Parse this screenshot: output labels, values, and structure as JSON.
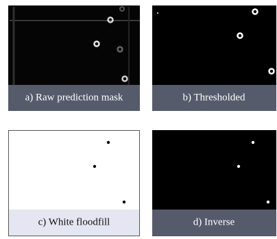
{
  "panels": [
    {
      "caption": "a) Raw prediction mask"
    },
    {
      "caption": "b) Thresholded"
    },
    {
      "caption": "c) White floodfill"
    },
    {
      "caption": "d) Inverse"
    }
  ]
}
